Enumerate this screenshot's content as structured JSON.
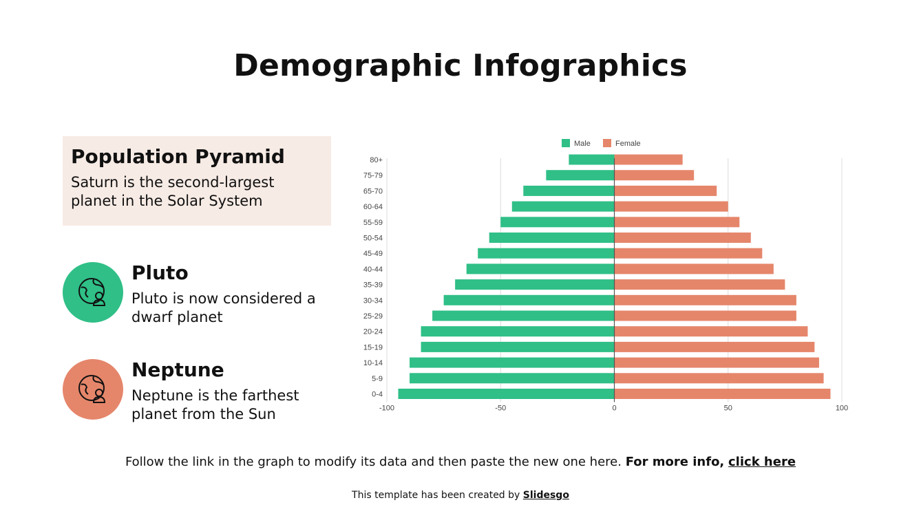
{
  "page": {
    "title": "Demographic Infographics"
  },
  "pyramid_box": {
    "title": "Population Pyramid",
    "description": "Saturn is the second-largest planet in the Solar System"
  },
  "items": [
    {
      "title": "Pluto",
      "description": "Pluto is now considered a dwarf planet",
      "color": "#2fbf87",
      "icon": "globe-person-icon"
    },
    {
      "title": "Neptune",
      "description": "Neptune is the farthest planet from the Sun",
      "color": "#e5866b",
      "icon": "globe-person-icon"
    }
  ],
  "chart_data": {
    "type": "bar",
    "orientation": "horizontal",
    "title": "",
    "categories": [
      "80+",
      "75-79",
      "65-70",
      "60-64",
      "55-59",
      "50-54",
      "45-49",
      "40-44",
      "35-39",
      "30-34",
      "25-29",
      "20-24",
      "15-19",
      "10-14",
      "5-9",
      "0-4"
    ],
    "series": [
      {
        "name": "Male",
        "color": "#2fbf87",
        "values": [
          -20,
          -30,
          -40,
          -45,
          -50,
          -55,
          -60,
          -65,
          -70,
          -75,
          -80,
          -85,
          -85,
          -90,
          -90,
          -95
        ]
      },
      {
        "name": "Female",
        "color": "#e5866b",
        "values": [
          30,
          35,
          45,
          50,
          55,
          60,
          65,
          70,
          75,
          80,
          80,
          85,
          88,
          90,
          92,
          95
        ]
      }
    ],
    "xlim": [
      -100,
      100
    ],
    "xticks": [
      "-100",
      "-50",
      "0",
      "50",
      "100"
    ],
    "grid": true,
    "legend_position": "top"
  },
  "footer": {
    "text": "Follow the link in the graph to modify its data and then paste the new one here.",
    "bold_text": "For more info,",
    "link_text": "click here"
  },
  "credit": {
    "text": "This template has been created by",
    "brand": "Slidesgo"
  }
}
